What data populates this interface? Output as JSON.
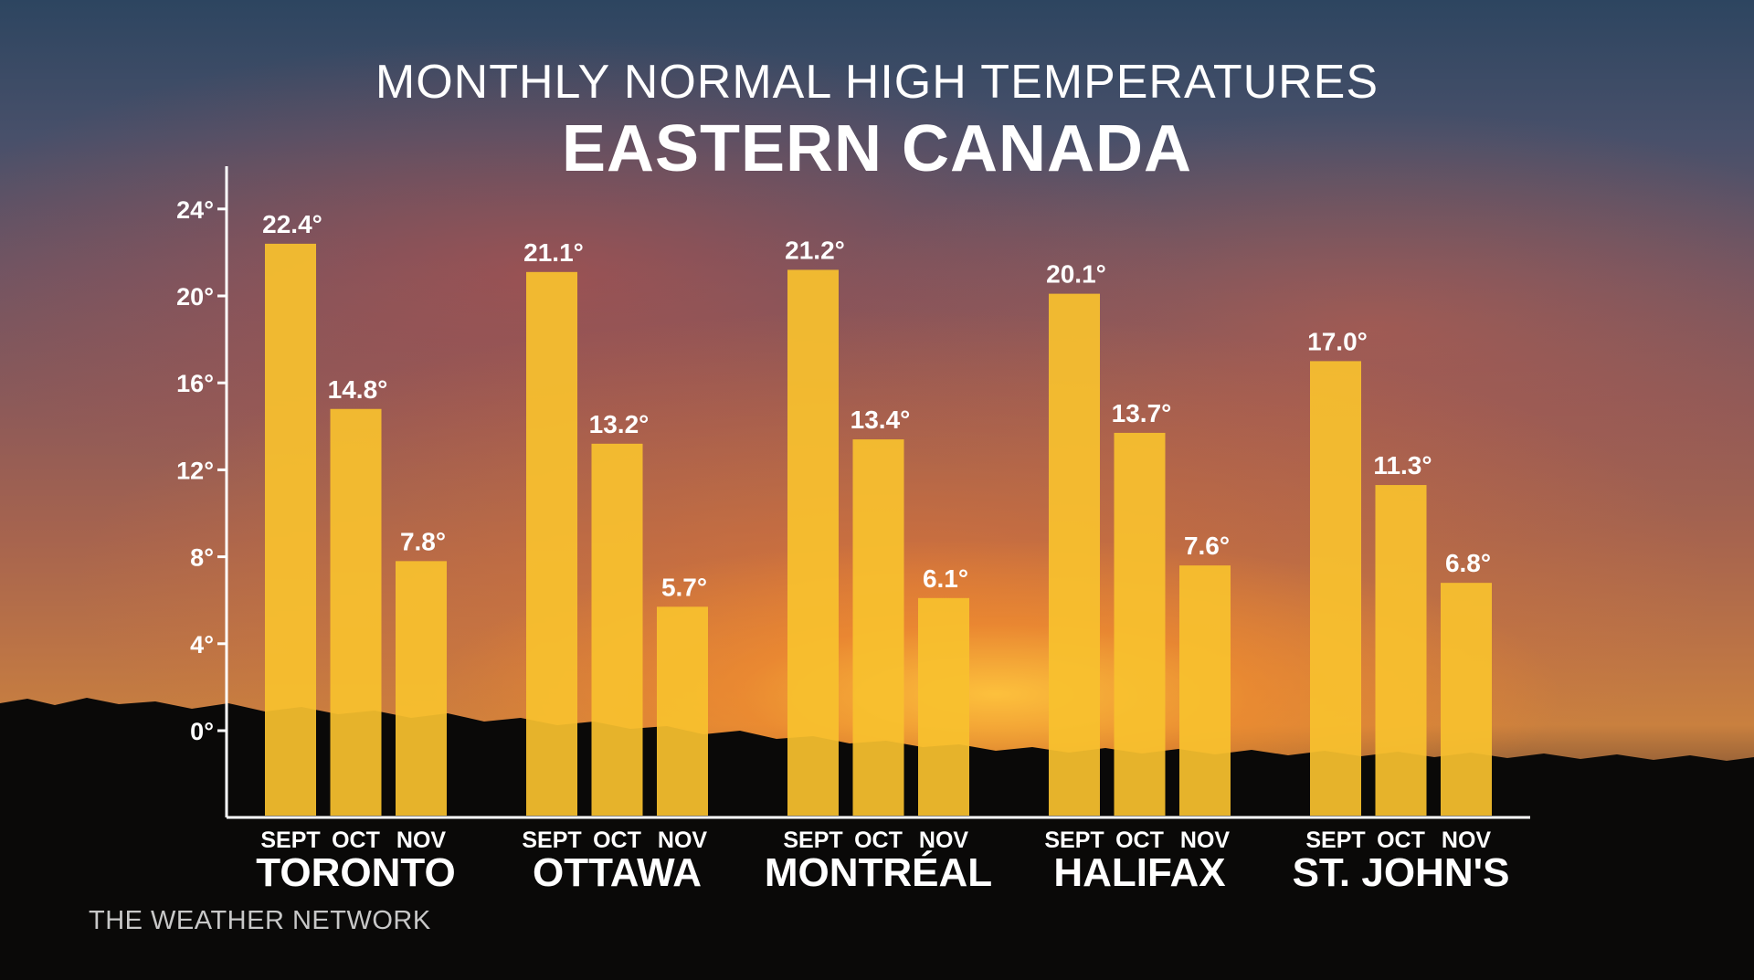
{
  "title": "MONTHLY NORMAL HIGH TEMPERATURES",
  "subtitle": "EASTERN CANADA",
  "credit": "THE WEATHER NETWORK",
  "colors": {
    "bar": "#f8c12e",
    "axis": "#ffffff",
    "text": "#ffffff"
  },
  "chart_data": {
    "type": "bar",
    "title": "MONTHLY NORMAL HIGH TEMPERATURES",
    "subtitle": "EASTERN CANADA",
    "categories": [
      "TORONTO",
      "OTTAWA",
      "MONTRÉAL",
      "HALIFAX",
      "ST. JOHN'S"
    ],
    "months": [
      "SEPT",
      "OCT",
      "NOV"
    ],
    "series": [
      {
        "values": [
          22.4,
          21.1,
          21.2,
          20.1,
          17.0
        ]
      },
      {
        "values": [
          14.8,
          13.2,
          13.4,
          13.7,
          11.3
        ]
      },
      {
        "values": [
          7.8,
          5.7,
          6.1,
          7.6,
          6.8
        ]
      }
    ],
    "value_labels": [
      [
        "22.4°",
        "14.8°",
        "7.8°"
      ],
      [
        "21.1°",
        "13.2°",
        "5.7°"
      ],
      [
        "21.2°",
        "13.4°",
        "6.1°"
      ],
      [
        "20.1°",
        "13.7°",
        "7.6°"
      ],
      [
        "17.0°",
        "11.3°",
        "6.8°"
      ]
    ],
    "yticks": [
      0,
      4,
      8,
      12,
      16,
      20,
      24
    ],
    "ytick_labels": [
      "0°",
      "4°",
      "8°",
      "12°",
      "16°",
      "20°",
      "24°"
    ],
    "ylim": [
      -4,
      26
    ],
    "xlabel": "",
    "ylabel": "",
    "grid": false
  }
}
